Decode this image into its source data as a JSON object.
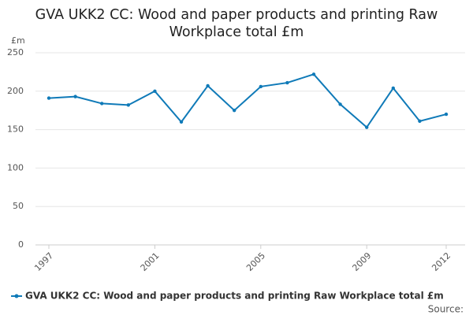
{
  "chart_data": {
    "type": "line",
    "title": "GVA UKK2 CC: Wood and paper products and printing Raw Workplace total £m",
    "y_label": "£m",
    "source": "Source:",
    "x": [
      1997,
      1998,
      1999,
      2000,
      2001,
      2002,
      2003,
      2004,
      2005,
      2006,
      2007,
      2008,
      2009,
      2010,
      2011,
      2012
    ],
    "series": [
      {
        "name": "GVA UKK2 CC: Wood and paper products and printing Raw Workplace total £m",
        "color": "#0f7ab8",
        "values": [
          191,
          193,
          184,
          182,
          200,
          160,
          207,
          175,
          206,
          211,
          222,
          183,
          153,
          204,
          161,
          170
        ]
      }
    ],
    "xlim": [
      1997,
      2012
    ],
    "xticks": [
      1997,
      2001,
      2005,
      2009,
      2012
    ],
    "ylim": [
      0,
      250
    ],
    "yticks": [
      0,
      50,
      100,
      150,
      200,
      250
    ],
    "grid": true
  }
}
